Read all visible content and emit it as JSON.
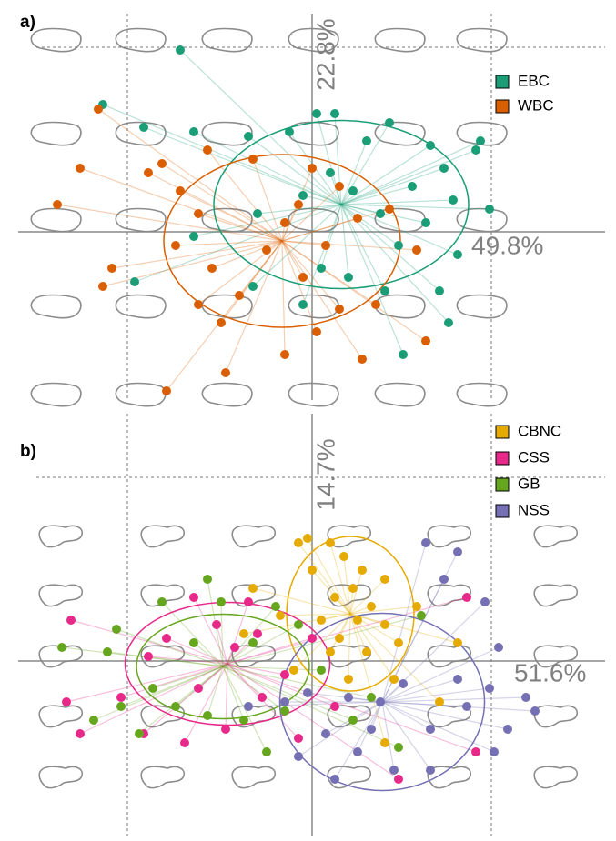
{
  "chart_data": [
    {
      "type": "scatter",
      "label": "a)",
      "xlabel": "49.8%",
      "ylabel": "22.8%",
      "xlim": [
        -6.46,
        6.44
      ],
      "ylim": [
        -3.7,
        4.8
      ],
      "series": [
        {
          "name": "EBC",
          "color": "#1b9e77",
          "ellipse": {
            "cx": 0.64,
            "cy": 0.6,
            "rx": 2.8,
            "ry": 1.85
          },
          "x": [
            -2.9,
            -4.6,
            -3.7,
            -2.6,
            -1.4,
            -0.5,
            0.1,
            0.5,
            1.2,
            1.7,
            2.6,
            3.6,
            3.7,
            2.9,
            2.2,
            3.1,
            3.9,
            2.5,
            1.5,
            0.9,
            0.4,
            -0.2,
            -1.2,
            -2.6,
            -3.9,
            -1.3,
            0.2,
            1.6,
            2.8,
            3.0,
            2.0,
            0.8,
            -0.2,
            3.2,
            1.9
          ],
          "y": [
            4.0,
            2.8,
            2.3,
            2.2,
            2.1,
            2.2,
            2.6,
            2.6,
            2.0,
            2.4,
            1.9,
            1.8,
            2.0,
            1.4,
            1.0,
            0.7,
            0.5,
            0.2,
            0.4,
            0.9,
            1.3,
            0.8,
            0.4,
            -0.1,
            -1.1,
            -1.2,
            -0.8,
            -1.3,
            -1.3,
            -2.0,
            -2.7,
            -1.0,
            -1.6,
            -0.5,
            -0.3
          ]
        },
        {
          "name": "WBC",
          "color": "#d95f02",
          "ellipse": {
            "cx": -0.66,
            "cy": -0.2,
            "rx": 2.6,
            "ry": 1.9
          },
          "x": [
            -4.7,
            -5.1,
            -5.6,
            -4.4,
            -4.6,
            -3.6,
            -3.3,
            -2.9,
            -2.5,
            -3.0,
            -2.2,
            -2.5,
            -2.0,
            -1.6,
            -1.0,
            -0.6,
            -0.3,
            0.0,
            0.6,
            1.0,
            0.3,
            -0.2,
            0.6,
            0.1,
            -0.6,
            1.1,
            1.4,
            2.5,
            2.3,
            -1.3,
            -3.2,
            -1.9,
            -2.3,
            1.7
          ],
          "y": [
            2.7,
            1.4,
            0.6,
            -0.8,
            -1.2,
            1.3,
            1.5,
            0.9,
            0.4,
            -0.3,
            -0.8,
            -1.6,
            -2.0,
            -1.4,
            -0.4,
            0.2,
            0.6,
            1.4,
            1.0,
            0.3,
            -0.3,
            -1.0,
            -1.7,
            -2.2,
            -2.7,
            -2.8,
            -1.6,
            -2.4,
            -0.4,
            1.6,
            -3.5,
            -3.1,
            1.8,
            0.5
          ]
        }
      ]
    },
    {
      "type": "scatter",
      "label": "b)",
      "xlabel": "51.6%",
      "ylabel": "14.7%",
      "xlim": [
        -6.46,
        6.44
      ],
      "ylim": [
        -3.86,
        5.44
      ],
      "series": [
        {
          "name": "CBNC",
          "color": "#e6ab02",
          "ellipse": {
            "cx": 0.84,
            "cy": 1.04,
            "rx": 1.4,
            "ry": 1.7
          },
          "x": [
            -0.3,
            -0.1,
            0.0,
            0.4,
            0.7,
            1.1,
            1.6,
            1.3,
            0.9,
            0.5,
            0.2,
            0.6,
            1.0,
            1.6,
            2.3,
            1.9,
            1.2,
            0.4,
            -0.7,
            -1.5,
            -0.4,
            0.8,
            1.8,
            2.8,
            1.6,
            3.2,
            -1.3
          ],
          "y": [
            2.6,
            2.7,
            2.0,
            2.6,
            2.3,
            2.0,
            1.8,
            1.2,
            1.6,
            1.4,
            0.9,
            0.5,
            0.9,
            0.8,
            1.2,
            0.4,
            0.2,
            0.2,
            1.0,
            0.6,
            -0.2,
            -0.4,
            -0.4,
            -0.9,
            -1.8,
            0.4,
            1.6
          ]
        },
        {
          "name": "CSS",
          "color": "#e7298a",
          "ellipse": {
            "cx": -1.86,
            "cy": -0.06,
            "rx": 2.25,
            "ry": 1.35
          },
          "x": [
            -5.3,
            -5.4,
            -5.1,
            -4.2,
            -3.6,
            -3.2,
            -2.6,
            -2.1,
            -1.7,
            -1.2,
            -2.5,
            -3.7,
            -2.8,
            -1.9,
            -1.1,
            -0.6,
            0.0,
            0.5,
            -0.3,
            -1.4,
            3.6,
            3.4,
            1.9
          ],
          "y": [
            0.9,
            -0.9,
            -1.6,
            -0.8,
            0.1,
            0.5,
            1.4,
            0.8,
            0.3,
            0.6,
            -0.6,
            -1.6,
            -1.8,
            -1.5,
            -0.8,
            -0.3,
            0.5,
            -1.0,
            -1.7,
            1.3,
            -2.0,
            1.4,
            -2.6
          ]
        },
        {
          "name": "GB",
          "color": "#66a61e",
          "ellipse": {
            "cx": -1.96,
            "cy": -0.12,
            "rx": 1.9,
            "ry": 1.15
          },
          "x": [
            -5.5,
            -4.5,
            -4.3,
            -4.2,
            -3.5,
            -3.3,
            -2.6,
            -2.0,
            -1.3,
            -0.8,
            -0.3,
            0.2,
            -0.6,
            -1.5,
            -2.3,
            -3.0,
            -3.8,
            -1.0,
            0.9,
            1.3,
            1.9,
            -2.3,
            2.4,
            -4.8
          ],
          "y": [
            0.3,
            0.2,
            0.7,
            -1.0,
            -0.6,
            1.3,
            0.4,
            1.3,
            0.4,
            1.2,
            0.8,
            -0.2,
            -1.1,
            -1.3,
            -1.2,
            -1.0,
            -1.6,
            -2.0,
            -1.3,
            -0.8,
            -1.9,
            1.8,
            1.0,
            -1.3
          ]
        },
        {
          "name": "NSS",
          "color": "#7570b3",
          "ellipse": {
            "cx": 1.54,
            "cy": -0.9,
            "rx": 2.25,
            "ry": 1.95
          },
          "x": [
            2.5,
            3.2,
            2.9,
            3.8,
            4.1,
            3.9,
            4.7,
            4.3,
            3.4,
            2.6,
            2.0,
            1.5,
            0.8,
            -0.1,
            -0.6,
            -1.4,
            0.3,
            1.0,
            1.8,
            2.6,
            0.5,
            -0.3,
            4.0,
            4.9,
            3.2,
            1.3
          ],
          "y": [
            2.6,
            2.4,
            1.8,
            1.3,
            0.3,
            -0.6,
            -0.8,
            -1.5,
            -1.0,
            -1.5,
            -0.5,
            -0.9,
            -0.8,
            -0.7,
            -0.9,
            -1.0,
            -1.6,
            -2.0,
            -2.4,
            -2.4,
            -2.6,
            -2.1,
            -2.0,
            -1.1,
            -0.4,
            -1.5
          ]
        }
      ]
    }
  ]
}
